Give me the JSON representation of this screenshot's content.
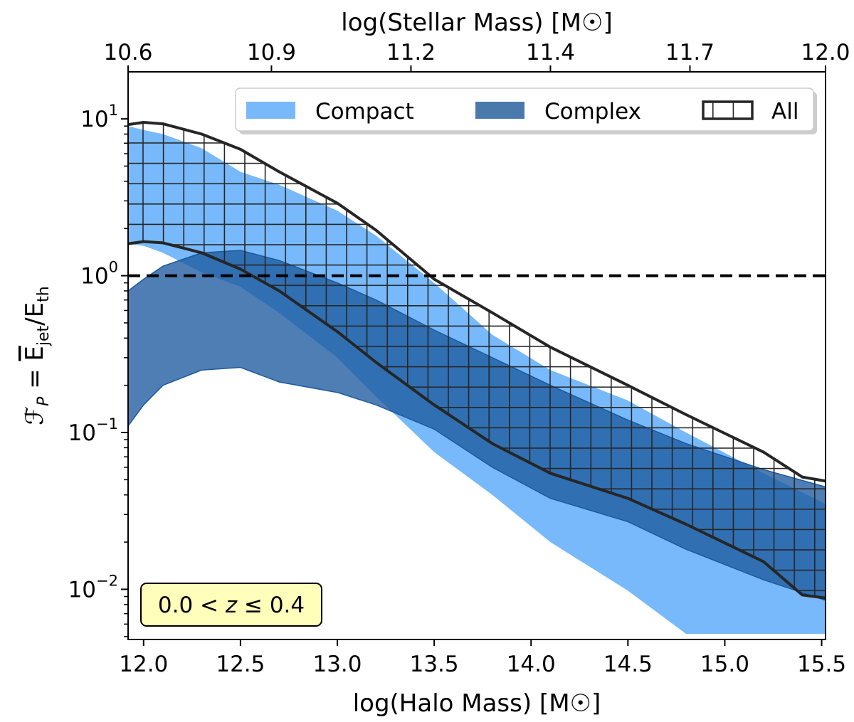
{
  "chart_data": {
    "type": "area",
    "title": "",
    "xlabel": "log(Halo Mass) [M☉]",
    "ylabel": "𝓕_P = E_jet / E_th",
    "ylabel_parts": {
      "lhs": "ℱ",
      "sub": "P",
      "eq": " = ",
      "num": "E",
      "num_sub": "jet",
      "slash": "/",
      "den": "E",
      "den_sub": "th"
    },
    "top_xlabel": "log(Stellar Mass) [M☉]",
    "xlim": [
      11.92,
      15.52
    ],
    "ylim_log10": [
      -2.32,
      1.3
    ],
    "yscale": "log",
    "x_ticks": [
      12.0,
      12.5,
      13.0,
      13.5,
      14.0,
      14.5,
      15.0,
      15.5
    ],
    "x_tick_labels": [
      "12.0",
      "12.5",
      "13.0",
      "13.5",
      "14.0",
      "14.5",
      "15.0",
      "15.5"
    ],
    "top_x_ticks": [
      11.92,
      12.66,
      13.38,
      14.1,
      14.82,
      15.52
    ],
    "top_x_tick_labels": [
      "10.6",
      "10.9",
      "11.2",
      "11.4",
      "11.7",
      "12.0"
    ],
    "y_ticks_log10": [
      -2,
      -1,
      0,
      1
    ],
    "y_tick_labels": [
      {
        "base": "10",
        "exp": "−2"
      },
      {
        "base": "10",
        "exp": "−1"
      },
      {
        "base": "10",
        "exp": "0"
      },
      {
        "base": "10",
        "exp": "1"
      }
    ],
    "reference_line": {
      "y": 1.0,
      "style": "dashed",
      "color": "#000000"
    },
    "annotation": {
      "text": "0.0 < z ≤ 0.4",
      "pre": "0.0 < ",
      "var": "z",
      "post": " ≤ 0.4",
      "location": "lower-left",
      "box_color": "#ffffbb"
    },
    "legend": {
      "location": "top-right",
      "entries": [
        {
          "label": "Compact",
          "series": "compact"
        },
        {
          "label": "Complex",
          "series": "complex"
        },
        {
          "label": "All",
          "series": "all"
        }
      ]
    },
    "series": [
      {
        "name": "Compact",
        "id": "compact",
        "color": "#77b9fb",
        "x": [
          11.92,
          12.0,
          12.1,
          12.3,
          12.5,
          12.7,
          13.0,
          13.2,
          13.5,
          13.8,
          14.1,
          14.5,
          14.8,
          15.2,
          15.52
        ],
        "upper": [
          9.0,
          8.5,
          8.0,
          6.5,
          4.6,
          3.8,
          2.6,
          1.8,
          0.9,
          0.42,
          0.25,
          0.16,
          0.1,
          0.055,
          0.035
        ],
        "lower": [
          1.6,
          1.55,
          1.4,
          1.05,
          0.85,
          0.58,
          0.3,
          0.17,
          0.075,
          0.04,
          0.02,
          0.0098,
          0.0052,
          0.0052,
          0.0052
        ]
      },
      {
        "name": "Complex",
        "id": "complex",
        "color": "#1c5a9e",
        "x": [
          11.92,
          12.0,
          12.1,
          12.3,
          12.5,
          12.7,
          13.0,
          13.2,
          13.5,
          13.8,
          14.1,
          14.5,
          14.8,
          15.2,
          15.52
        ],
        "upper": [
          0.8,
          0.95,
          1.15,
          1.4,
          1.45,
          1.25,
          0.9,
          0.7,
          0.45,
          0.3,
          0.2,
          0.12,
          0.085,
          0.058,
          0.045
        ],
        "lower": [
          0.11,
          0.15,
          0.2,
          0.25,
          0.26,
          0.21,
          0.18,
          0.15,
          0.105,
          0.06,
          0.038,
          0.027,
          0.018,
          0.0115,
          0.0085
        ]
      },
      {
        "name": "All",
        "id": "all",
        "color": "#262626",
        "hatch": "grid",
        "x": [
          11.92,
          12.0,
          12.1,
          12.3,
          12.5,
          12.7,
          13.0,
          13.2,
          13.5,
          13.8,
          14.1,
          14.5,
          14.8,
          15.2,
          15.4,
          15.52
        ],
        "upper": [
          9.2,
          9.5,
          9.3,
          8.0,
          6.4,
          4.6,
          2.9,
          1.95,
          0.95,
          0.58,
          0.35,
          0.2,
          0.13,
          0.075,
          0.052,
          0.049
        ],
        "lower": [
          1.6,
          1.65,
          1.62,
          1.4,
          1.1,
          0.8,
          0.44,
          0.28,
          0.15,
          0.085,
          0.055,
          0.038,
          0.026,
          0.015,
          0.0092,
          0.0088
        ]
      }
    ]
  }
}
